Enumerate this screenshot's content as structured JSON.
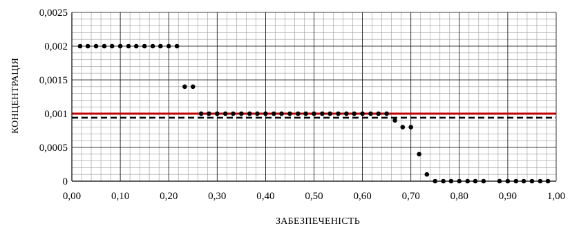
{
  "chart_data": {
    "type": "scatter",
    "title": "",
    "xlabel": "ЗАБЕЗПЕЧЕНІСТЬ",
    "ylabel": "КОНЦЕНТРАЦІЯ",
    "xlim": [
      0,
      1
    ],
    "ylim": [
      0,
      0.0025
    ],
    "grid": true,
    "x_ticks": [
      0,
      0.1,
      0.2,
      0.3,
      0.4,
      0.5,
      0.6,
      0.7,
      0.8,
      0.9,
      1.0
    ],
    "x_tick_labels": [
      "0,00",
      "0,10",
      "0,20",
      "0,30",
      "0,40",
      "0,50",
      "0,60",
      "0,70",
      "0,80",
      "0,90",
      "1,00"
    ],
    "y_ticks": [
      0,
      0.0005,
      0.001,
      0.0015,
      0.002,
      0.0025
    ],
    "y_tick_labels": [
      "0",
      "0,0005",
      "0,001",
      "0,0015",
      "0,002",
      "0,0025"
    ],
    "points": {
      "x": [
        0.017,
        0.033,
        0.05,
        0.067,
        0.083,
        0.1,
        0.117,
        0.133,
        0.15,
        0.167,
        0.183,
        0.2,
        0.217,
        0.233,
        0.25,
        0.267,
        0.283,
        0.3,
        0.317,
        0.333,
        0.35,
        0.367,
        0.383,
        0.4,
        0.417,
        0.433,
        0.45,
        0.467,
        0.483,
        0.5,
        0.517,
        0.533,
        0.55,
        0.567,
        0.583,
        0.6,
        0.617,
        0.633,
        0.65,
        0.667,
        0.683,
        0.7,
        0.717,
        0.733,
        0.75,
        0.767,
        0.783,
        0.8,
        0.817,
        0.833,
        0.85,
        0.883,
        0.9,
        0.917,
        0.933,
        0.95,
        0.967,
        0.983
      ],
      "y": [
        0.002,
        0.002,
        0.002,
        0.002,
        0.002,
        0.002,
        0.002,
        0.002,
        0.002,
        0.002,
        0.002,
        0.002,
        0.002,
        0.0014,
        0.0014,
        0.001,
        0.001,
        0.001,
        0.001,
        0.001,
        0.001,
        0.001,
        0.001,
        0.001,
        0.001,
        0.001,
        0.001,
        0.001,
        0.001,
        0.001,
        0.001,
        0.001,
        0.001,
        0.001,
        0.001,
        0.001,
        0.001,
        0.001,
        0.001,
        0.0009,
        0.0008,
        0.0008,
        0.0004,
        0.0001,
        0.0,
        0.0,
        0.0,
        0.0,
        0.0,
        0.0,
        0.0,
        0.0,
        0.0,
        0.0,
        0.0,
        0.0,
        0.0,
        0.0
      ],
      "color": "#000000"
    },
    "reference_lines": [
      {
        "y": 0.001,
        "style": "solid",
        "color": "#c00000"
      },
      {
        "y": 0.00094,
        "style": "dashed",
        "color": "#000000"
      }
    ]
  }
}
